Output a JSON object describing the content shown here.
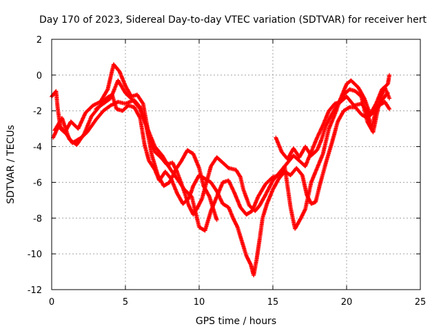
{
  "chart_data": {
    "type": "scatter",
    "title": "Day 170 of 2023, Sidereal Day-to-day VTEC variation (SDTVAR) for receiver hert",
    "xlabel": "GPS time / hours",
    "ylabel": "SDTVAR / TECUs",
    "xlim": [
      0,
      25
    ],
    "ylim": [
      -12,
      2
    ],
    "x_ticks": [
      0,
      5,
      10,
      15,
      20,
      25
    ],
    "y_ticks": [
      -12,
      -10,
      -8,
      -6,
      -4,
      -2,
      0,
      2
    ],
    "x_tick_labels": [
      "0",
      "5",
      "10",
      "15",
      "20",
      "25"
    ],
    "y_tick_labels": [
      "-12",
      "-10",
      "-8",
      "-6",
      "-4",
      "-2",
      "0",
      "2"
    ],
    "grid": true,
    "marker": "+",
    "series": [
      {
        "color": "#ff0000",
        "tracks": [
          [
            [
              0,
              -1.2
            ],
            [
              0.3,
              -0.9
            ],
            [
              0.4,
              -1.8
            ],
            [
              0.6,
              -3.0
            ],
            [
              1.0,
              -3.3
            ],
            [
              1.4,
              -3.8
            ],
            [
              2.0,
              -3.5
            ],
            [
              2.4,
              -3.2
            ],
            [
              3.0,
              -2.5
            ],
            [
              3.5,
              -2.0
            ],
            [
              4.0,
              -1.7
            ],
            [
              4.5,
              -1.5
            ],
            [
              5.0,
              -1.6
            ],
            [
              5.6,
              -1.4
            ],
            [
              6.0,
              -1.8
            ],
            [
              6.4,
              -2.8
            ],
            [
              6.8,
              -4.5
            ],
            [
              7.2,
              -5.6
            ],
            [
              7.6,
              -6.2
            ],
            [
              8.0,
              -6.0
            ],
            [
              8.4,
              -5.3
            ],
            [
              8.8,
              -4.8
            ],
            [
              9.2,
              -4.2
            ],
            [
              9.6,
              -4.4
            ],
            [
              10.0,
              -5.2
            ],
            [
              10.3,
              -6.2
            ],
            [
              10.7,
              -6.8
            ],
            [
              11.0,
              -7.6
            ],
            [
              11.2,
              -8.1
            ]
          ],
          [
            [
              0.1,
              -3.5
            ],
            [
              0.5,
              -2.8
            ],
            [
              0.9,
              -3.2
            ],
            [
              1.3,
              -2.6
            ],
            [
              1.8,
              -3.0
            ],
            [
              2.3,
              -2.1
            ],
            [
              2.8,
              -1.7
            ],
            [
              3.3,
              -1.5
            ],
            [
              3.8,
              -0.8
            ],
            [
              4.2,
              0.6
            ],
            [
              4.6,
              0.2
            ],
            [
              5.0,
              -0.6
            ],
            [
              5.4,
              -1.2
            ],
            [
              5.8,
              -1.1
            ],
            [
              6.2,
              -1.6
            ],
            [
              6.6,
              -3.4
            ],
            [
              7.0,
              -4.3
            ],
            [
              7.4,
              -4.6
            ],
            [
              7.8,
              -5.0
            ],
            [
              8.2,
              -4.9
            ],
            [
              8.5,
              -5.4
            ],
            [
              8.9,
              -6.3
            ],
            [
              9.3,
              -7.3
            ],
            [
              9.6,
              -7.8
            ],
            [
              9.9,
              -7.4
            ],
            [
              10.2,
              -6.9
            ],
            [
              10.5,
              -6.0
            ],
            [
              10.8,
              -5.1
            ],
            [
              11.2,
              -4.6
            ],
            [
              11.6,
              -4.9
            ],
            [
              12.0,
              -5.2
            ],
            [
              12.5,
              -5.3
            ],
            [
              12.8,
              -5.7
            ],
            [
              13.0,
              -6.4
            ],
            [
              13.4,
              -7.3
            ],
            [
              13.8,
              -7.6
            ],
            [
              14.1,
              -7.3
            ],
            [
              14.5,
              -6.7
            ],
            [
              15.0,
              -5.9
            ],
            [
              15.5,
              -5.4
            ],
            [
              16.0,
              -4.9
            ],
            [
              16.4,
              -4.5
            ],
            [
              16.8,
              -4.8
            ],
            [
              17.2,
              -5.1
            ],
            [
              17.6,
              -4.3
            ],
            [
              18.0,
              -3.5
            ],
            [
              18.4,
              -2.8
            ],
            [
              18.8,
              -2.0
            ],
            [
              19.2,
              -1.6
            ],
            [
              19.6,
              -1.5
            ],
            [
              20.0,
              -1.2
            ],
            [
              20.5,
              -1.7
            ],
            [
              21.0,
              -1.6
            ],
            [
              21.3,
              -1.9
            ],
            [
              21.7,
              -2.9
            ],
            [
              22.0,
              -2.0
            ],
            [
              22.4,
              -1.4
            ],
            [
              22.8,
              -1.0
            ]
          ],
          [
            [
              0.2,
              -3.1
            ],
            [
              0.7,
              -2.4
            ],
            [
              1.2,
              -3.6
            ],
            [
              1.7,
              -3.9
            ],
            [
              2.2,
              -3.3
            ],
            [
              2.7,
              -2.3
            ],
            [
              3.2,
              -1.8
            ],
            [
              3.7,
              -1.3
            ],
            [
              4.1,
              -1.1
            ],
            [
              4.4,
              -1.9
            ],
            [
              4.8,
              -2.0
            ],
            [
              5.2,
              -1.7
            ],
            [
              5.6,
              -1.8
            ],
            [
              6.0,
              -2.4
            ],
            [
              6.3,
              -3.9
            ],
            [
              6.6,
              -4.8
            ],
            [
              7.0,
              -5.3
            ],
            [
              7.3,
              -5.9
            ],
            [
              7.7,
              -5.4
            ],
            [
              8.1,
              -5.8
            ],
            [
              8.5,
              -6.6
            ],
            [
              8.9,
              -7.2
            ],
            [
              9.3,
              -6.9
            ],
            [
              9.6,
              -6.2
            ],
            [
              10.0,
              -5.6
            ],
            [
              10.4,
              -5.8
            ],
            [
              10.8,
              -6.0
            ],
            [
              11.2,
              -6.5
            ],
            [
              11.6,
              -7.2
            ],
            [
              12.0,
              -7.4
            ],
            [
              12.3,
              -8.0
            ],
            [
              12.6,
              -8.5
            ],
            [
              12.9,
              -9.3
            ],
            [
              13.2,
              -10.1
            ],
            [
              13.5,
              -10.6
            ],
            [
              13.7,
              -11.2
            ],
            [
              13.9,
              -10.3
            ],
            [
              14.1,
              -9.2
            ],
            [
              14.3,
              -8.0
            ],
            [
              14.6,
              -7.2
            ],
            [
              15.0,
              -6.4
            ],
            [
              15.4,
              -5.8
            ],
            [
              15.8,
              -5.4
            ],
            [
              16.2,
              -5.6
            ],
            [
              16.6,
              -5.2
            ],
            [
              17.0,
              -5.6
            ],
            [
              17.3,
              -6.7
            ],
            [
              17.6,
              -7.2
            ],
            [
              17.9,
              -7.1
            ],
            [
              18.2,
              -6.1
            ],
            [
              18.6,
              -4.9
            ],
            [
              19.0,
              -3.8
            ],
            [
              19.4,
              -2.6
            ],
            [
              19.8,
              -2.0
            ],
            [
              20.2,
              -1.8
            ],
            [
              20.6,
              -1.8
            ],
            [
              21.0,
              -2.2
            ],
            [
              21.4,
              -2.4
            ],
            [
              21.8,
              -2.1
            ],
            [
              22.2,
              -1.7
            ],
            [
              22.6,
              -1.5
            ],
            [
              22.9,
              -1.9
            ]
          ],
          [
            [
              3.0,
              -1.9
            ],
            [
              3.5,
              -1.6
            ],
            [
              4.0,
              -1.3
            ],
            [
              4.5,
              -0.3
            ],
            [
              5.0,
              -1.0
            ],
            [
              5.5,
              -1.4
            ],
            [
              6.0,
              -1.9
            ],
            [
              6.5,
              -3.0
            ],
            [
              7.0,
              -4.0
            ],
            [
              7.5,
              -4.5
            ],
            [
              8.0,
              -5.2
            ],
            [
              8.5,
              -5.8
            ],
            [
              9.0,
              -6.4
            ],
            [
              9.5,
              -6.8
            ],
            [
              10.0,
              -8.5
            ],
            [
              10.4,
              -8.7
            ],
            [
              10.8,
              -7.6
            ],
            [
              11.2,
              -6.8
            ],
            [
              11.6,
              -6.0
            ],
            [
              12.0,
              -5.9
            ],
            [
              12.4,
              -6.6
            ],
            [
              12.8,
              -7.4
            ],
            [
              13.2,
              -7.8
            ],
            [
              13.6,
              -7.6
            ],
            [
              14.0,
              -6.8
            ],
            [
              14.5,
              -6.1
            ],
            [
              15.0,
              -5.7
            ],
            [
              15.5,
              -5.6
            ],
            [
              15.8,
              -5.1
            ],
            [
              16.2,
              -7.4
            ],
            [
              16.5,
              -8.6
            ],
            [
              16.9,
              -8.0
            ],
            [
              17.2,
              -7.5
            ],
            [
              17.6,
              -6.0
            ],
            [
              18.0,
              -5.2
            ],
            [
              18.4,
              -4.4
            ],
            [
              18.8,
              -3.0
            ],
            [
              19.2,
              -2.2
            ],
            [
              19.6,
              -1.3
            ],
            [
              20.0,
              -0.5
            ],
            [
              20.3,
              -0.3
            ],
            [
              20.8,
              -0.7
            ],
            [
              21.2,
              -1.3
            ],
            [
              21.6,
              -2.2
            ],
            [
              22.0,
              -1.6
            ],
            [
              22.4,
              -0.8
            ],
            [
              22.8,
              -0.5
            ],
            [
              22.9,
              0.0
            ]
          ],
          [
            [
              15.2,
              -3.5
            ],
            [
              15.6,
              -4.3
            ],
            [
              16.0,
              -4.7
            ],
            [
              16.4,
              -4.1
            ],
            [
              16.8,
              -4.6
            ],
            [
              17.2,
              -4.0
            ],
            [
              17.6,
              -4.5
            ],
            [
              18.0,
              -4.2
            ],
            [
              18.3,
              -3.6
            ],
            [
              18.6,
              -2.8
            ],
            [
              19.0,
              -2.2
            ],
            [
              19.4,
              -1.6
            ],
            [
              19.8,
              -1.1
            ],
            [
              20.2,
              -0.8
            ],
            [
              20.6,
              -0.9
            ],
            [
              21.0,
              -1.2
            ],
            [
              21.4,
              -2.6
            ],
            [
              21.8,
              -3.2
            ],
            [
              22.2,
              -1.6
            ],
            [
              22.6,
              -0.7
            ],
            [
              22.9,
              -1.3
            ]
          ]
        ]
      }
    ]
  }
}
